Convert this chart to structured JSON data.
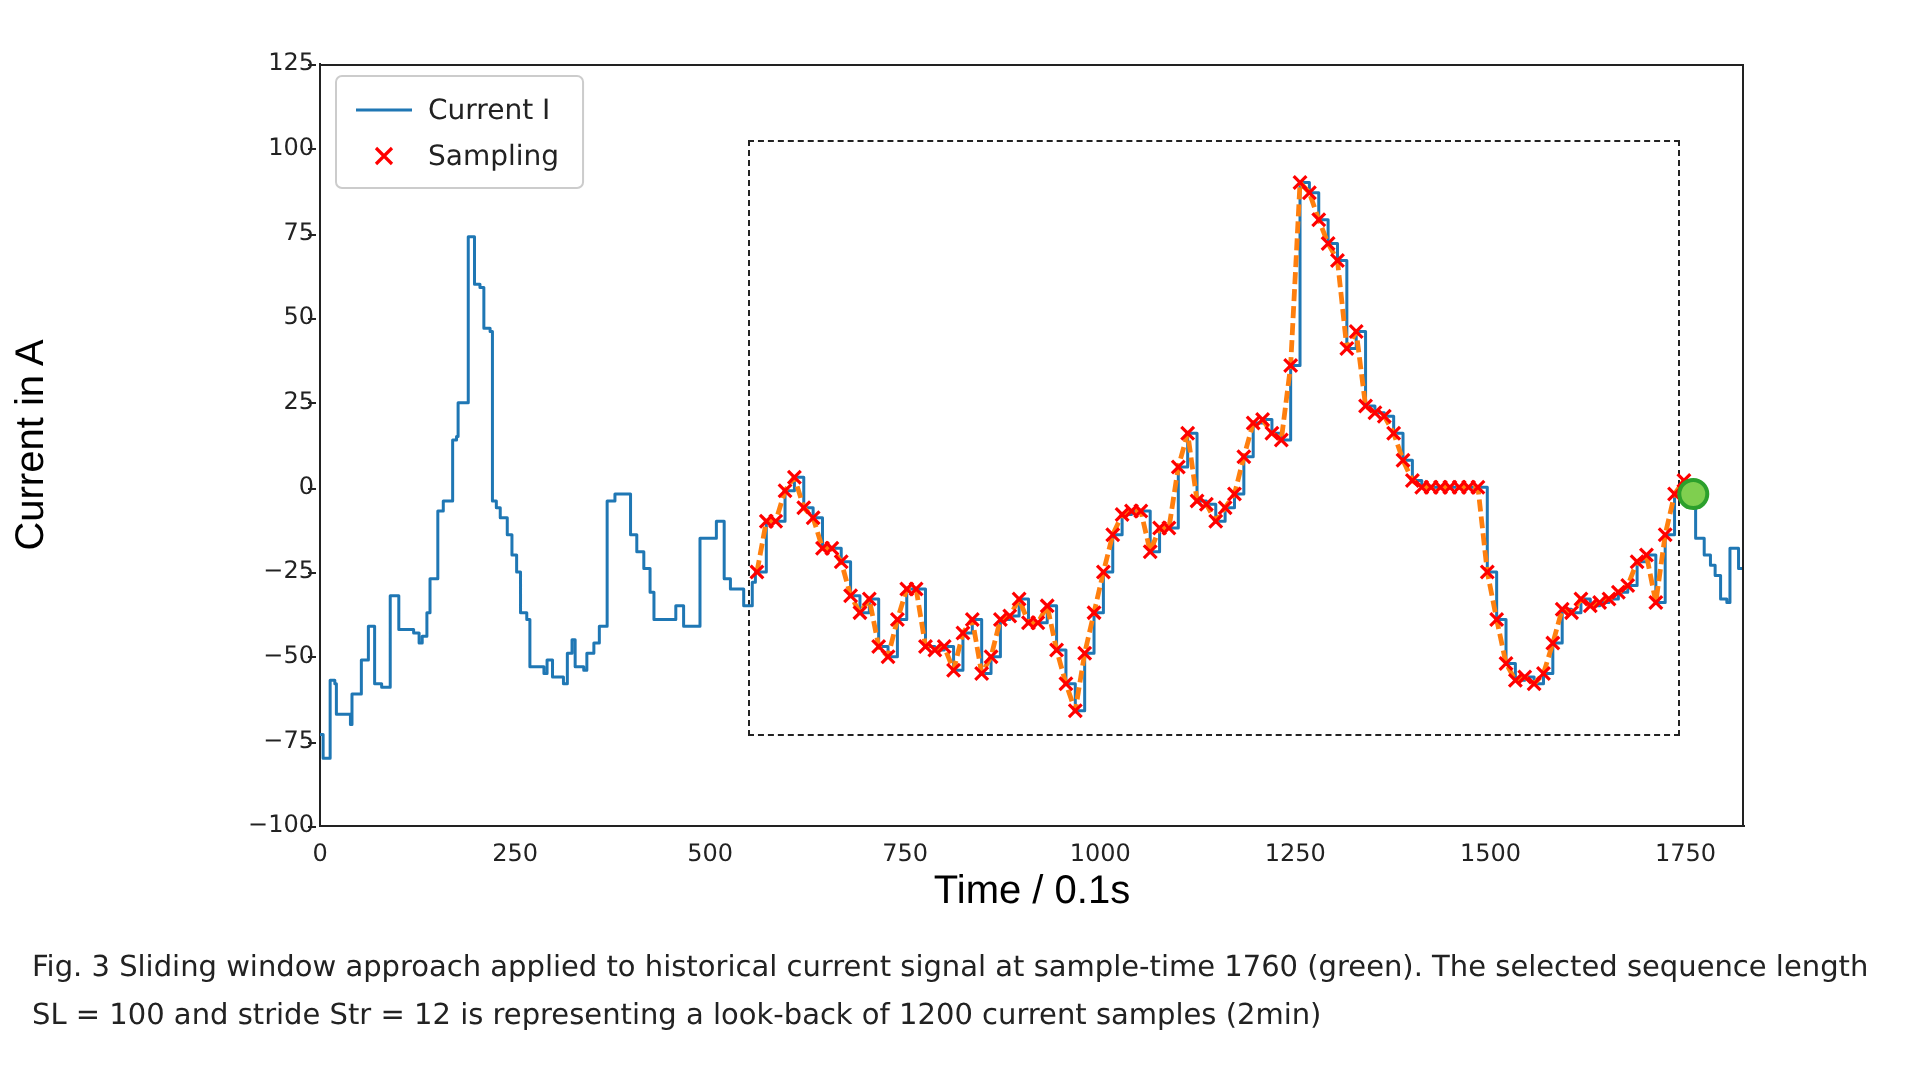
{
  "chart_data": {
    "type": "line",
    "xlabel": "Time / 0.1s",
    "ylabel": "Current in A",
    "xlim": [
      0,
      1825
    ],
    "xticks": [
      0,
      250,
      500,
      750,
      1000,
      1250,
      1500,
      1750
    ],
    "ylim": [
      -100,
      125
    ],
    "yticks": [
      {
        "value": -100,
        "label": "−100"
      },
      {
        "value": -75,
        "label": "−75"
      },
      {
        "value": -50,
        "label": "−50"
      },
      {
        "value": -25,
        "label": "−25"
      },
      0,
      25,
      50,
      75,
      100,
      125
    ],
    "grid": false,
    "legend": "top left",
    "annotations": [
      "Fig. 3 Sliding window approach applied to historical current signal at sample-time 1760 (green). The selected sequence length SL = 100 and stride Str = 12 is representing a look-back of 1200 current samples (2min)"
    ],
    "series": [
      {
        "name": "Current I",
        "type": "step",
        "color": "#1f77b4",
        "marker": "none",
        "line_style": "solid",
        "x": [
          0,
          4,
          9,
          13,
          19,
          21,
          39,
          41,
          50,
          53,
          60,
          62,
          68,
          70,
          79,
          90,
          98,
          101,
          120,
          127,
          131,
          137,
          141,
          150,
          151,
          158,
          165,
          170,
          175,
          177,
          187,
          190,
          195,
          198,
          205,
          210,
          218,
          221,
          226,
          231,
          240,
          246,
          252,
          257,
          265,
          269,
          287,
          291,
          295,
          298,
          312,
          317,
          323,
          327,
          338,
          342,
          351,
          358,
          366,
          368,
          378,
          395,
          398,
          406,
          415,
          423,
          428,
          449,
          456,
          462,
          466,
          485,
          487,
          505,
          508,
          516,
          518,
          526,
          539,
          543,
          552,
          554,
          558,
          560,
          572,
          584,
          596,
          608,
          620,
          632,
          644,
          656,
          668,
          680,
          692,
          704,
          716,
          728,
          740,
          752,
          764,
          776,
          788,
          800,
          812,
          824,
          836,
          848,
          860,
          872,
          884,
          896,
          908,
          920,
          932,
          944,
          956,
          968,
          980,
          992,
          1004,
          1016,
          1028,
          1040,
          1052,
          1064,
          1076,
          1088,
          1100,
          1112,
          1124,
          1136,
          1148,
          1160,
          1172,
          1184,
          1196,
          1208,
          1220,
          1232,
          1244,
          1256,
          1268,
          1280,
          1292,
          1304,
          1316,
          1328,
          1340,
          1352,
          1364,
          1376,
          1388,
          1400,
          1412,
          1424,
          1436,
          1448,
          1460,
          1472,
          1484,
          1496,
          1508,
          1520,
          1532,
          1544,
          1556,
          1568,
          1580,
          1592,
          1604,
          1616,
          1628,
          1640,
          1652,
          1664,
          1676,
          1688,
          1700,
          1712,
          1724,
          1736,
          1748,
          1760,
          1763,
          1774,
          1782,
          1788,
          1795,
          1803,
          1807,
          1816,
          1818,
          1825
        ],
        "values": [
          -73,
          -80,
          -80,
          -57,
          -58,
          -67,
          -70,
          -61,
          -61,
          -51,
          -51,
          -41,
          -41,
          -58,
          -59,
          -32,
          -32,
          -42,
          -43,
          -46,
          -44,
          -37,
          -27,
          -27,
          -7,
          -4,
          -4,
          14,
          15,
          25,
          25,
          74,
          74,
          60,
          59,
          47,
          46,
          -4,
          -6,
          -9,
          -14,
          -20,
          -25,
          -37,
          -39,
          -53,
          -55,
          -51,
          -51,
          -56,
          -58,
          -49,
          -45,
          -53,
          -54,
          -49,
          -46,
          -41,
          -41,
          -4,
          -2,
          -2,
          -14,
          -19,
          -24,
          -31,
          -39,
          -39,
          -35,
          -35,
          -41,
          -41,
          -15,
          -15,
          -10,
          -10,
          -27,
          -30,
          -30,
          -35,
          -35,
          -28,
          -25,
          -25,
          -10,
          -10,
          -1,
          3,
          -6,
          -9,
          -18,
          -18,
          -22,
          -32,
          -37,
          -33,
          -47,
          -50,
          -39,
          -30,
          -30,
          -47,
          -48,
          -47,
          -54,
          -43,
          -39,
          -55,
          -50,
          -39,
          -38,
          -33,
          -40,
          -40,
          -35,
          -48,
          -58,
          -66,
          -49,
          -37,
          -25,
          -14,
          -8,
          -7,
          -7,
          -19,
          -12,
          -12,
          6,
          16,
          -4,
          -5,
          -10,
          -6,
          -2,
          9,
          19,
          20,
          16,
          14,
          36,
          90,
          87,
          79,
          72,
          67,
          41,
          46,
          24,
          22,
          21,
          16,
          8,
          2,
          0,
          0,
          0,
          0,
          0,
          0,
          0,
          -25,
          -39,
          -52,
          -57,
          -56,
          -58,
          -55,
          -46,
          -36,
          -37,
          -33,
          -35,
          -34,
          -33,
          -31,
          -29,
          -22,
          -20,
          -34,
          -14,
          -2,
          2,
          -2,
          -15,
          -20,
          -23,
          -26,
          -33,
          -34,
          -18,
          -18,
          -24,
          -25
        ]
      },
      {
        "color": "#ff7f0e",
        "marker": "none",
        "line_style": "dashed",
        "x": [
          560,
          572,
          584,
          596,
          608,
          620,
          632,
          644,
          656,
          668,
          680,
          692,
          704,
          716,
          728,
          740,
          752,
          764,
          776,
          788,
          800,
          812,
          824,
          836,
          848,
          860,
          872,
          884,
          896,
          908,
          920,
          932,
          944,
          956,
          968,
          980,
          992,
          1004,
          1016,
          1028,
          1040,
          1052,
          1064,
          1076,
          1088,
          1100,
          1112,
          1124,
          1136,
          1148,
          1160,
          1172,
          1184,
          1196,
          1208,
          1220,
          1232,
          1244,
          1256,
          1268,
          1280,
          1292,
          1304,
          1316,
          1328,
          1340,
          1352,
          1364,
          1376,
          1388,
          1400,
          1412,
          1424,
          1436,
          1448,
          1460,
          1472,
          1484,
          1496,
          1508,
          1520,
          1532,
          1544,
          1556,
          1568,
          1580,
          1592,
          1604,
          1616,
          1628,
          1640,
          1652,
          1664,
          1676,
          1688,
          1700,
          1712,
          1724,
          1736,
          1748
        ],
        "values": [
          -25,
          -10,
          -10,
          -1,
          3,
          -6,
          -9,
          -18,
          -18,
          -22,
          -32,
          -37,
          -33,
          -47,
          -50,
          -39,
          -30,
          -30,
          -47,
          -48,
          -47,
          -54,
          -43,
          -39,
          -55,
          -50,
          -39,
          -38,
          -33,
          -40,
          -40,
          -35,
          -48,
          -58,
          -66,
          -49,
          -37,
          -25,
          -14,
          -8,
          -7,
          -7,
          -19,
          -12,
          -12,
          6,
          16,
          -4,
          -5,
          -10,
          -6,
          -2,
          9,
          19,
          20,
          16,
          14,
          36,
          90,
          87,
          79,
          72,
          67,
          41,
          46,
          24,
          22,
          21,
          16,
          8,
          2,
          0,
          0,
          0,
          0,
          0,
          0,
          0,
          -25,
          -39,
          -52,
          -57,
          -56,
          -58,
          -55,
          -46,
          -36,
          -37,
          -33,
          -35,
          -34,
          -33,
          -31,
          -29,
          -22,
          -20,
          -34,
          -14,
          -2,
          2
        ]
      },
      {
        "name": "Sampling",
        "type": "scatter",
        "color": "#ff0000",
        "marker": "cross",
        "x": [
          560,
          572,
          584,
          596,
          608,
          620,
          632,
          644,
          656,
          668,
          680,
          692,
          704,
          716,
          728,
          740,
          752,
          764,
          776,
          788,
          800,
          812,
          824,
          836,
          848,
          860,
          872,
          884,
          896,
          908,
          920,
          932,
          944,
          956,
          968,
          980,
          992,
          1004,
          1016,
          1028,
          1040,
          1052,
          1064,
          1076,
          1088,
          1100,
          1112,
          1124,
          1136,
          1148,
          1160,
          1172,
          1184,
          1196,
          1208,
          1220,
          1232,
          1244,
          1256,
          1268,
          1280,
          1292,
          1304,
          1316,
          1328,
          1340,
          1352,
          1364,
          1376,
          1388,
          1400,
          1412,
          1424,
          1436,
          1448,
          1460,
          1472,
          1484,
          1496,
          1508,
          1520,
          1532,
          1544,
          1556,
          1568,
          1580,
          1592,
          1604,
          1616,
          1628,
          1640,
          1652,
          1664,
          1676,
          1688,
          1700,
          1712,
          1724,
          1736,
          1748
        ],
        "values": [
          -25,
          -10,
          -10,
          -1,
          3,
          -6,
          -9,
          -18,
          -18,
          -22,
          -32,
          -37,
          -33,
          -47,
          -50,
          -39,
          -30,
          -30,
          -47,
          -48,
          -47,
          -54,
          -43,
          -39,
          -55,
          -50,
          -39,
          -38,
          -33,
          -40,
          -40,
          -35,
          -48,
          -58,
          -66,
          -49,
          -37,
          -25,
          -14,
          -8,
          -7,
          -7,
          -19,
          -12,
          -12,
          6,
          16,
          -4,
          -5,
          -10,
          -6,
          -2,
          9,
          19,
          20,
          16,
          14,
          36,
          90,
          87,
          79,
          72,
          67,
          41,
          46,
          24,
          22,
          21,
          16,
          8,
          2,
          0,
          0,
          0,
          0,
          0,
          0,
          0,
          -25,
          -39,
          -52,
          -57,
          -56,
          -58,
          -55,
          -46,
          -36,
          -37,
          -33,
          -35,
          -34,
          -33,
          -31,
          -29,
          -22,
          -20,
          -34,
          -14,
          -2,
          2
        ]
      },
      {
        "type": "scatter",
        "color": "#7fcf4f",
        "marker": "circle",
        "x": [
          1760
        ],
        "values": [
          -2
        ]
      }
    ]
  }
}
